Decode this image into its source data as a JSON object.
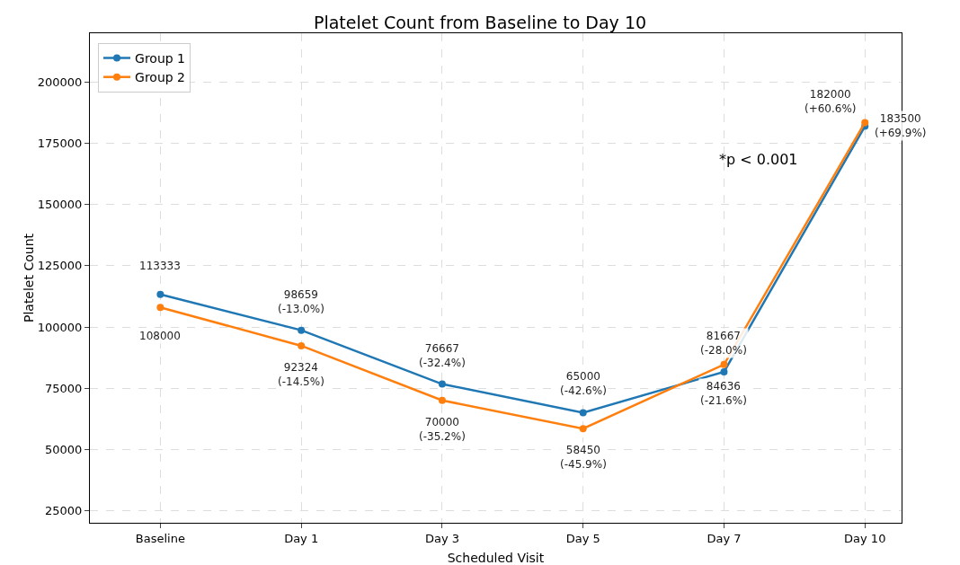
{
  "chart_data": {
    "type": "line",
    "title": "Platelet Count from Baseline to Day 10",
    "xlabel": "Scheduled Visit",
    "ylabel": "Platelet Count",
    "categories": [
      "Baseline",
      "Day 1",
      "Day 3",
      "Day 5",
      "Day 7",
      "Day 10"
    ],
    "series": [
      {
        "name": "Group 1",
        "color": "#1f77b4",
        "values": [
          113333,
          98659,
          76667,
          65000,
          81667,
          182000
        ],
        "value_labels": [
          "113333",
          "98659\n(-13.0%)",
          "76667\n(-32.4%)",
          "65000\n(-42.6%)",
          "81667\n(-28.0%)",
          "182000\n(+60.6%)"
        ]
      },
      {
        "name": "Group 2",
        "color": "#ff7f0e",
        "values": [
          108000,
          92324,
          70000,
          58450,
          84636,
          183500
        ],
        "value_labels": [
          "108000",
          "92324\n(-14.5%)",
          "70000\n(-35.2%)",
          "58450\n(-45.9%)",
          "84636\n(-21.6%)",
          "183500\n(+69.9%)"
        ]
      }
    ],
    "ylim": [
      20000,
      220000
    ],
    "yticks": [
      25000,
      50000,
      75000,
      100000,
      125000,
      150000,
      175000,
      200000
    ],
    "annotations": [
      "*p < 0.001"
    ],
    "grid": true,
    "legend": "top left",
    "marker": "circle",
    "line_style": "solid"
  }
}
